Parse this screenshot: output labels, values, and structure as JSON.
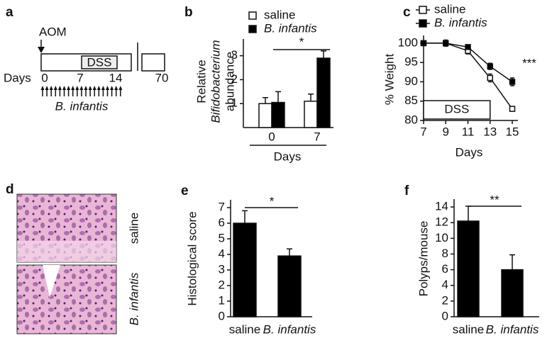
{
  "timeline": {
    "panel_label": "a",
    "aom": "AOM",
    "dss": "DSS",
    "days_label": "Days",
    "days": [
      "0",
      "7",
      "14",
      "70"
    ],
    "treatment": "B. infantis"
  },
  "histology": {
    "panel_label": "d",
    "labels": [
      "saline",
      "B. infantis"
    ]
  },
  "chart_data": [
    {
      "type": "bar",
      "panel_label": "b",
      "ylabel": [
        "Relative",
        "Bifidobacterium",
        "abundance"
      ],
      "xlabel": "Days",
      "categories": [
        "0",
        "7"
      ],
      "series": [
        {
          "name": "saline",
          "color": "#ffffff",
          "values": [
            1.0,
            1.1
          ],
          "errors": [
            0.25,
            0.3
          ]
        },
        {
          "name": "B. infantis",
          "color": "#000000",
          "values": [
            1.05,
            2.9
          ],
          "errors": [
            0.45,
            0.3
          ]
        }
      ],
      "ylim": [
        0,
        3.7
      ],
      "yticks": [
        1,
        2,
        3
      ],
      "annotation": "*"
    },
    {
      "type": "line",
      "panel_label": "c",
      "ylabel": "% Weight",
      "xlabel": "Days",
      "x": [
        7,
        9,
        11,
        13,
        15
      ],
      "series": [
        {
          "name": "saline",
          "color": "#ffffff",
          "values": [
            100,
            100,
            98,
            91,
            83
          ],
          "errors": [
            0,
            0.8,
            0.8,
            1,
            0.6
          ]
        },
        {
          "name": "B. infantis",
          "color": "#000000",
          "values": [
            100,
            100,
            99,
            94,
            90
          ],
          "errors": [
            0,
            0.5,
            0.5,
            0.8,
            1
          ]
        }
      ],
      "xlim": [
        7,
        15
      ],
      "xticks": [
        7,
        9,
        11,
        13,
        15
      ],
      "ylim": [
        80,
        102
      ],
      "yticks": [
        80,
        85,
        90,
        95,
        100
      ],
      "period": {
        "label": "DSS",
        "xrange": [
          7,
          13
        ]
      },
      "annotation": "***"
    },
    {
      "type": "bar",
      "panel_label": "e",
      "ylabel": "Histological score",
      "categories": [
        "saline",
        "B. infantis"
      ],
      "series": [
        {
          "color": "#000000",
          "values": [
            6.0,
            3.9
          ],
          "errors": [
            0.8,
            0.45
          ]
        }
      ],
      "ylim": [
        0,
        7.5
      ],
      "yticks": [
        0,
        1,
        2,
        3,
        4,
        5,
        6,
        7
      ],
      "annotation": "*"
    },
    {
      "type": "bar",
      "panel_label": "f",
      "ylabel": "Polyps/mouse",
      "categories": [
        "saline",
        "B. infantis"
      ],
      "series": [
        {
          "color": "#000000",
          "values": [
            12.2,
            6.0
          ],
          "errors": [
            1.9,
            1.9
          ]
        }
      ],
      "ylim": [
        0,
        15
      ],
      "yticks": [
        0,
        2,
        4,
        6,
        8,
        10,
        12,
        14
      ],
      "annotation": "**"
    }
  ]
}
